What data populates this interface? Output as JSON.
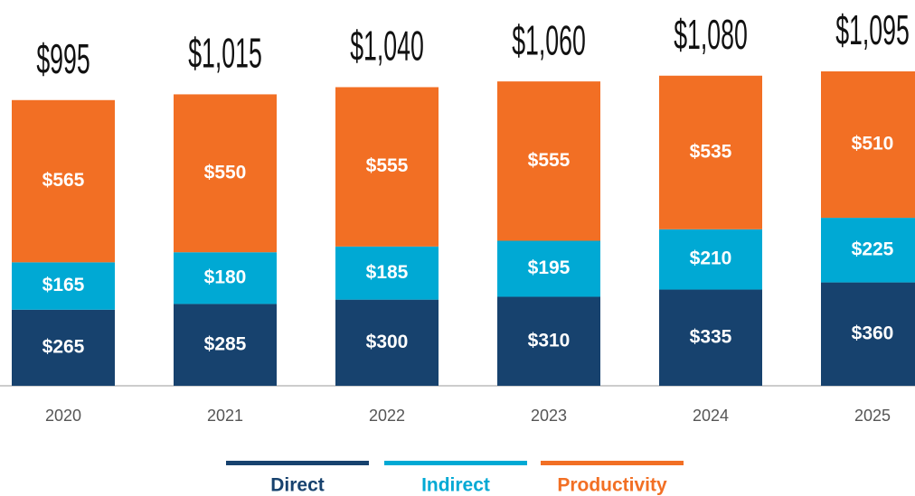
{
  "chart_data": {
    "type": "stacked_bar",
    "categories": [
      "2020",
      "2021",
      "2022",
      "2023",
      "2024",
      "2025"
    ],
    "series": [
      {
        "name": "Direct",
        "color": "#17426e",
        "values": [
          265,
          285,
          300,
          310,
          335,
          360
        ],
        "value_labels": [
          "$265",
          "$285",
          "$300",
          "$310",
          "$335",
          "$360"
        ]
      },
      {
        "name": "Indirect",
        "color": "#00a9d4",
        "values": [
          165,
          180,
          185,
          195,
          210,
          225
        ],
        "value_labels": [
          "$165",
          "$180",
          "$185",
          "$195",
          "$210",
          "$225"
        ]
      },
      {
        "name": "Productivity",
        "color": "#f26f24",
        "values": [
          565,
          550,
          555,
          555,
          535,
          510
        ],
        "value_labels": [
          "$565",
          "$550",
          "$555",
          "$555",
          "$535",
          "$510"
        ]
      }
    ],
    "totals": [
      995,
      1015,
      1040,
      1060,
      1080,
      1095
    ],
    "total_labels": [
      "$995",
      "$1,015",
      "$1,040",
      "$1,060",
      "$1,080",
      "$1,095"
    ]
  }
}
